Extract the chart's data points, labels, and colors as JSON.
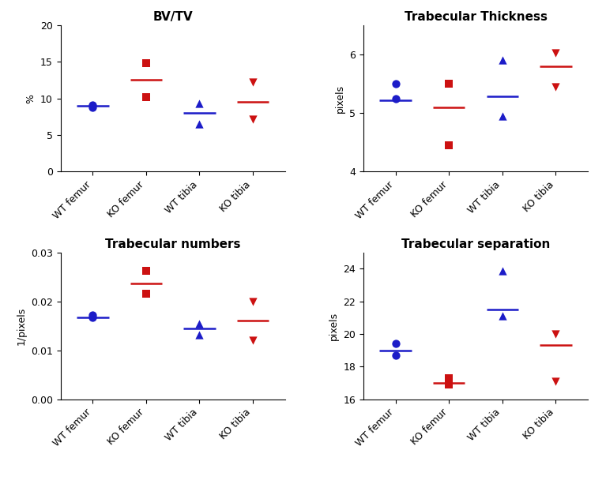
{
  "plots": [
    {
      "title": "BV/TV",
      "ylabel": "%",
      "ylim": [
        0,
        20
      ],
      "yticks": [
        0,
        5,
        10,
        15,
        20
      ],
      "categories": [
        "WT femur",
        "KO femur",
        "WT tibia",
        "KO tibia"
      ],
      "blue_points": [
        [
          8.8,
          9.05
        ],
        [
          null,
          null
        ],
        [
          6.5,
          9.3
        ],
        [
          null,
          null
        ]
      ],
      "red_points": [
        [
          null,
          null
        ],
        [
          10.2,
          14.8
        ],
        [
          null,
          null
        ],
        [
          7.1,
          12.2
        ]
      ],
      "blue_means": [
        9.0,
        null,
        8.0,
        null
      ],
      "red_means": [
        null,
        12.5,
        null,
        9.5
      ],
      "blue_markers": [
        "o",
        null,
        "^",
        null
      ],
      "red_markers": [
        null,
        "s",
        null,
        "v"
      ]
    },
    {
      "title": "Trabecular Thickness",
      "ylabel": "pixels",
      "ylim": [
        4,
        6.5
      ],
      "yticks": [
        4,
        5,
        6
      ],
      "categories": [
        "WT femur",
        "KO femur",
        "WT tibia",
        "KO tibia"
      ],
      "blue_points": [
        [
          5.25,
          5.5
        ],
        [
          null,
          null
        ],
        [
          4.95,
          5.9
        ],
        [
          null,
          null
        ]
      ],
      "red_points": [
        [
          null,
          null
        ],
        [
          4.45,
          5.5
        ],
        [
          null,
          null
        ],
        [
          5.45,
          6.02
        ]
      ],
      "blue_means": [
        5.22,
        null,
        5.28,
        null
      ],
      "red_means": [
        null,
        5.1,
        null,
        5.8
      ],
      "blue_markers": [
        "o",
        null,
        "^",
        null
      ],
      "red_markers": [
        null,
        "s",
        null,
        "v"
      ]
    },
    {
      "title": "Trabecular numbers",
      "ylabel": "1/pixels",
      "ylim": [
        0,
        0.03
      ],
      "yticks": [
        0.0,
        0.01,
        0.02,
        0.03
      ],
      "ytick_labels": [
        "0.00",
        "0.01",
        "0.02",
        "0.03"
      ],
      "categories": [
        "WT femur",
        "KO femur",
        "WT tibia",
        "KO tibia"
      ],
      "blue_points": [
        [
          0.0167,
          0.0172
        ],
        [
          null,
          null
        ],
        [
          0.0132,
          0.0155
        ],
        [
          null,
          null
        ]
      ],
      "red_points": [
        [
          null,
          null
        ],
        [
          0.0215,
          0.0262
        ],
        [
          null,
          null
        ],
        [
          0.012,
          0.02
        ]
      ],
      "blue_means": [
        0.0168,
        null,
        0.0144,
        null
      ],
      "red_means": [
        null,
        0.0237,
        null,
        0.016
      ],
      "blue_markers": [
        "o",
        null,
        "^",
        null
      ],
      "red_markers": [
        null,
        "s",
        null,
        "v"
      ]
    },
    {
      "title": "Trabecular separation",
      "ylabel": "pixels",
      "ylim": [
        16,
        25
      ],
      "yticks": [
        16,
        18,
        20,
        22,
        24
      ],
      "categories": [
        "WT femur",
        "KO femur",
        "WT tibia",
        "KO tibia"
      ],
      "blue_points": [
        [
          18.7,
          19.4
        ],
        [
          null,
          null
        ],
        [
          21.1,
          23.85
        ],
        [
          null,
          null
        ]
      ],
      "red_points": [
        [
          null,
          null
        ],
        [
          16.9,
          17.3
        ],
        [
          null,
          null
        ],
        [
          17.1,
          20.0
        ]
      ],
      "blue_means": [
        19.0,
        null,
        21.5,
        null
      ],
      "red_means": [
        null,
        17.0,
        null,
        19.3
      ],
      "blue_markers": [
        "o",
        null,
        "^",
        null
      ],
      "red_markers": [
        null,
        "s",
        null,
        "v"
      ]
    }
  ],
  "blue_color": "#1C1CC8",
  "red_color": "#CC1111",
  "marker_size": 55,
  "mean_line_lw": 1.8,
  "mean_line_half": 0.3,
  "title_fontsize": 11,
  "label_fontsize": 9,
  "tick_fontsize": 9,
  "xtick_fontsize": 9
}
